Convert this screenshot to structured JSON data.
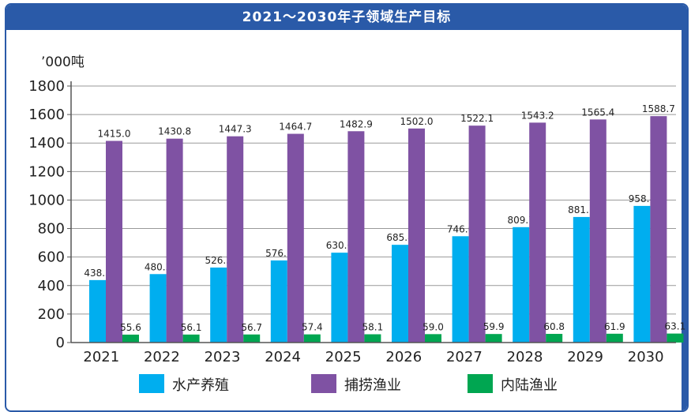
{
  "chart_data": {
    "type": "bar",
    "title": "2021～2030年子领域生产目标",
    "unit_label": "’000吨",
    "categories": [
      "2021",
      "2022",
      "2023",
      "2024",
      "2025",
      "2026",
      "2027",
      "2028",
      "2029",
      "2030"
    ],
    "series": [
      {
        "name": "水产养殖",
        "color": "#00aeef",
        "values": [
          438.3,
          480.3,
          526.3,
          576.1,
          630.6,
          685.8,
          746.0,
          809.7,
          881.1,
          958.8
        ]
      },
      {
        "name": "捕捞渔业",
        "color": "#7f52a3",
        "values": [
          1415.0,
          1430.8,
          1447.3,
          1464.7,
          1482.9,
          1502.0,
          1522.1,
          1543.2,
          1565.4,
          1588.7
        ]
      },
      {
        "name": "内陆渔业",
        "color": "#00a651",
        "values": [
          55.6,
          56.1,
          56.7,
          57.4,
          58.1,
          59.0,
          59.9,
          60.8,
          61.9,
          63.1
        ]
      }
    ],
    "ylim": [
      0,
      1800
    ],
    "yticks": [
      0,
      200,
      400,
      600,
      800,
      1000,
      1200,
      1400,
      1600,
      1800
    ],
    "grid": true,
    "legend": "bottom"
  }
}
